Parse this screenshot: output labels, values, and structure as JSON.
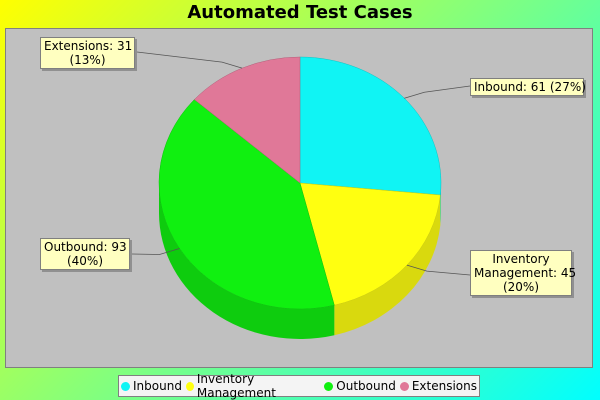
{
  "chart_data": {
    "type": "pie",
    "title": "Automated Test Cases",
    "slices": [
      {
        "name": "Inbound",
        "value": 61,
        "percent": "27%",
        "label_line1": "Inbound: 61 (27%)",
        "label_line2": "",
        "label_line3": "",
        "color": "#10f4f4"
      },
      {
        "name": "Inventory Management",
        "value": 45,
        "percent": "20%",
        "label_line1": "Inventory",
        "label_line2": "Management: 45",
        "label_line3": "(20%)",
        "color": "#ffff10"
      },
      {
        "name": "Outbound",
        "value": 93,
        "percent": "40%",
        "label_line1": "Outbound: 93",
        "label_line2": "(40%)",
        "label_line3": "",
        "color": "#10f010"
      },
      {
        "name": "Extensions",
        "value": 31,
        "percent": "13%",
        "label_line1": "Extensions: 31",
        "label_line2": "(13%)",
        "label_line3": "",
        "color": "#e07898"
      }
    ],
    "legend_position": "bottom",
    "three_d": true
  }
}
